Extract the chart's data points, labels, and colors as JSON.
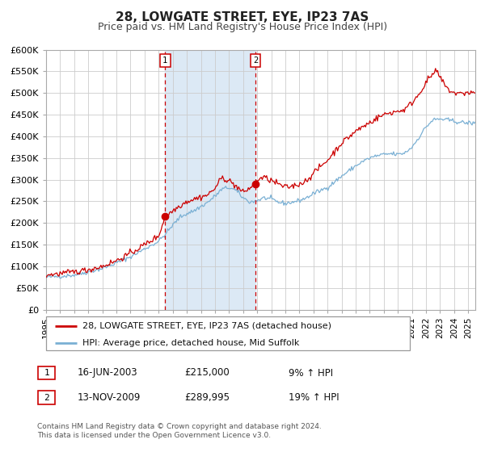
{
  "title": "28, LOWGATE STREET, EYE, IP23 7AS",
  "subtitle": "Price paid vs. HM Land Registry's House Price Index (HPI)",
  "ylim": [
    0,
    600000
  ],
  "yticks": [
    0,
    50000,
    100000,
    150000,
    200000,
    250000,
    300000,
    350000,
    400000,
    450000,
    500000,
    550000,
    600000
  ],
  "ytick_labels": [
    "£0",
    "£50K",
    "£100K",
    "£150K",
    "£200K",
    "£250K",
    "£300K",
    "£350K",
    "£400K",
    "£450K",
    "£500K",
    "£550K",
    "£600K"
  ],
  "xlim_start": 1995.0,
  "xlim_end": 2025.5,
  "xtick_years": [
    1995,
    1996,
    1997,
    1998,
    1999,
    2000,
    2001,
    2002,
    2003,
    2004,
    2005,
    2006,
    2007,
    2008,
    2009,
    2010,
    2011,
    2012,
    2013,
    2014,
    2015,
    2016,
    2017,
    2018,
    2019,
    2020,
    2021,
    2022,
    2023,
    2024,
    2025
  ],
  "red_line_color": "#cc0000",
  "blue_line_color": "#7ab0d4",
  "background_color": "#ffffff",
  "grid_color": "#cccccc",
  "shaded_region_color": "#dce9f5",
  "vline_color": "#cc0000",
  "marker1_date": 2003.46,
  "marker1_value": 215000,
  "marker2_date": 2009.87,
  "marker2_value": 289995,
  "legend_label_red": "28, LOWGATE STREET, EYE, IP23 7AS (detached house)",
  "legend_label_blue": "HPI: Average price, detached house, Mid Suffolk",
  "table_row1_date": "16-JUN-2003",
  "table_row1_price": "£215,000",
  "table_row1_hpi": "9% ↑ HPI",
  "table_row2_date": "13-NOV-2009",
  "table_row2_price": "£289,995",
  "table_row2_hpi": "19% ↑ HPI",
  "footer_text": "Contains HM Land Registry data © Crown copyright and database right 2024.\nThis data is licensed under the Open Government Licence v3.0.",
  "title_fontsize": 11,
  "subtitle_fontsize": 9,
  "tick_fontsize": 8,
  "legend_fontsize": 8,
  "table_fontsize": 8.5,
  "footer_fontsize": 6.5
}
